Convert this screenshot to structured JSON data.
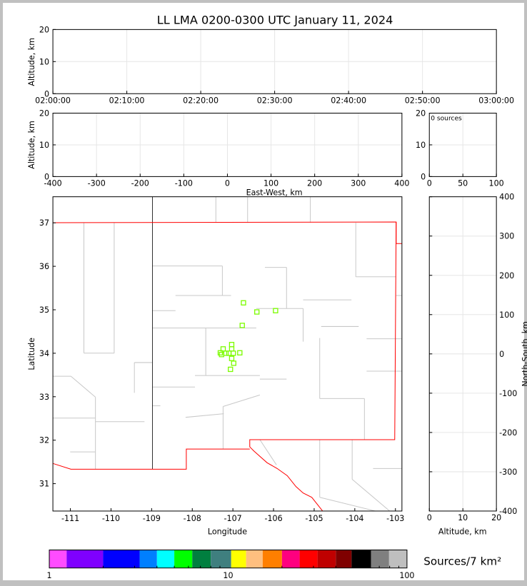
{
  "chart_data": {
    "title": "LL LMA 0200-0300 UTC January 11, 2024",
    "type": "scatter",
    "panels": {
      "time_altitude": {
        "ylabel": "Altitude, km",
        "ylim": [
          0,
          20
        ],
        "yticks": [
          "0",
          "10",
          "20"
        ],
        "xticks": [
          "02:00:00",
          "02:10:00",
          "02:20:00",
          "02:30:00",
          "02:40:00",
          "02:50:00",
          "03:00:00"
        ],
        "grid": true
      },
      "ew_altitude": {
        "ylabel": "Altitude, km",
        "xlabel": "East-West, km",
        "xlim": [
          -400,
          400
        ],
        "ylim": [
          0,
          20
        ],
        "xticks": [
          "-400",
          "-300",
          "-200",
          "-100",
          "0",
          "100",
          "200",
          "300",
          "400"
        ],
        "yticks": [
          "0",
          "10",
          "20"
        ],
        "grid": true
      },
      "histogram": {
        "annotation": "0 sources",
        "xlim": [
          0,
          100
        ],
        "ylim": [
          0,
          20
        ],
        "xticks": [
          "0",
          "50",
          "100"
        ],
        "yticks": [
          "0",
          "10",
          "20"
        ],
        "grid": true
      },
      "map": {
        "xlabel": "Longitude",
        "ylabel": "Latitude",
        "xlim": [
          -111.43,
          -102.84
        ],
        "ylim": [
          30.37,
          37.6
        ],
        "xticks": [
          "-111",
          "-110",
          "-109",
          "-108",
          "-107",
          "-106",
          "-105",
          "-104",
          "-103"
        ],
        "yticks": [
          "31",
          "32",
          "33",
          "34",
          "35",
          "36",
          "37"
        ],
        "state_border_color": "#ff0000",
        "county_border_color": "#c8c8c8",
        "marker_color": "#7cfc00",
        "points": [
          {
            "lon": -106.74,
            "lat": 35.16
          },
          {
            "lon": -106.41,
            "lat": 34.95
          },
          {
            "lon": -105.95,
            "lat": 34.98
          },
          {
            "lon": -106.77,
            "lat": 34.64
          },
          {
            "lon": -107.31,
            "lat": 34.01
          },
          {
            "lon": -107.24,
            "lat": 34.1
          },
          {
            "lon": -107.17,
            "lat": 34.0
          },
          {
            "lon": -107.1,
            "lat": 34.0
          },
          {
            "lon": -107.03,
            "lat": 34.2
          },
          {
            "lon": -107.03,
            "lat": 34.1
          },
          {
            "lon": -106.99,
            "lat": 34.0
          },
          {
            "lon": -106.83,
            "lat": 34.01
          },
          {
            "lon": -107.28,
            "lat": 33.97
          },
          {
            "lon": -107.03,
            "lat": 33.88
          },
          {
            "lon": -106.98,
            "lat": 33.77
          },
          {
            "lon": -107.06,
            "lat": 33.63
          }
        ]
      },
      "ns_altitude": {
        "ylabel": "North-South, km",
        "xlabel": "Altitude, km",
        "xlim": [
          0,
          20
        ],
        "ylim": [
          -400,
          400
        ],
        "xticks": [
          "0",
          "10",
          "20"
        ],
        "yticks": [
          "400",
          "300",
          "200",
          "100",
          "0",
          "-100",
          "-200",
          "-300",
          "-400"
        ],
        "grid": true
      }
    },
    "colorbar": {
      "label": "Sources/7 km²",
      "scale": "log",
      "range": [
        1,
        100
      ],
      "ticklabels": [
        "1",
        "10",
        "100"
      ],
      "colors": [
        "#ff4cff",
        "#7f00ff",
        "#0000ff",
        "#007fff",
        "#00ffff",
        "#00ff00",
        "#007f3f",
        "#3f7f7f",
        "#ffff00",
        "#ffbf7f",
        "#ff7f00",
        "#ff007f",
        "#ff0000",
        "#bf0000",
        "#7f0000",
        "#000000",
        "#7f7f7f",
        "#bfbfbf",
        "#ffffff"
      ]
    }
  }
}
